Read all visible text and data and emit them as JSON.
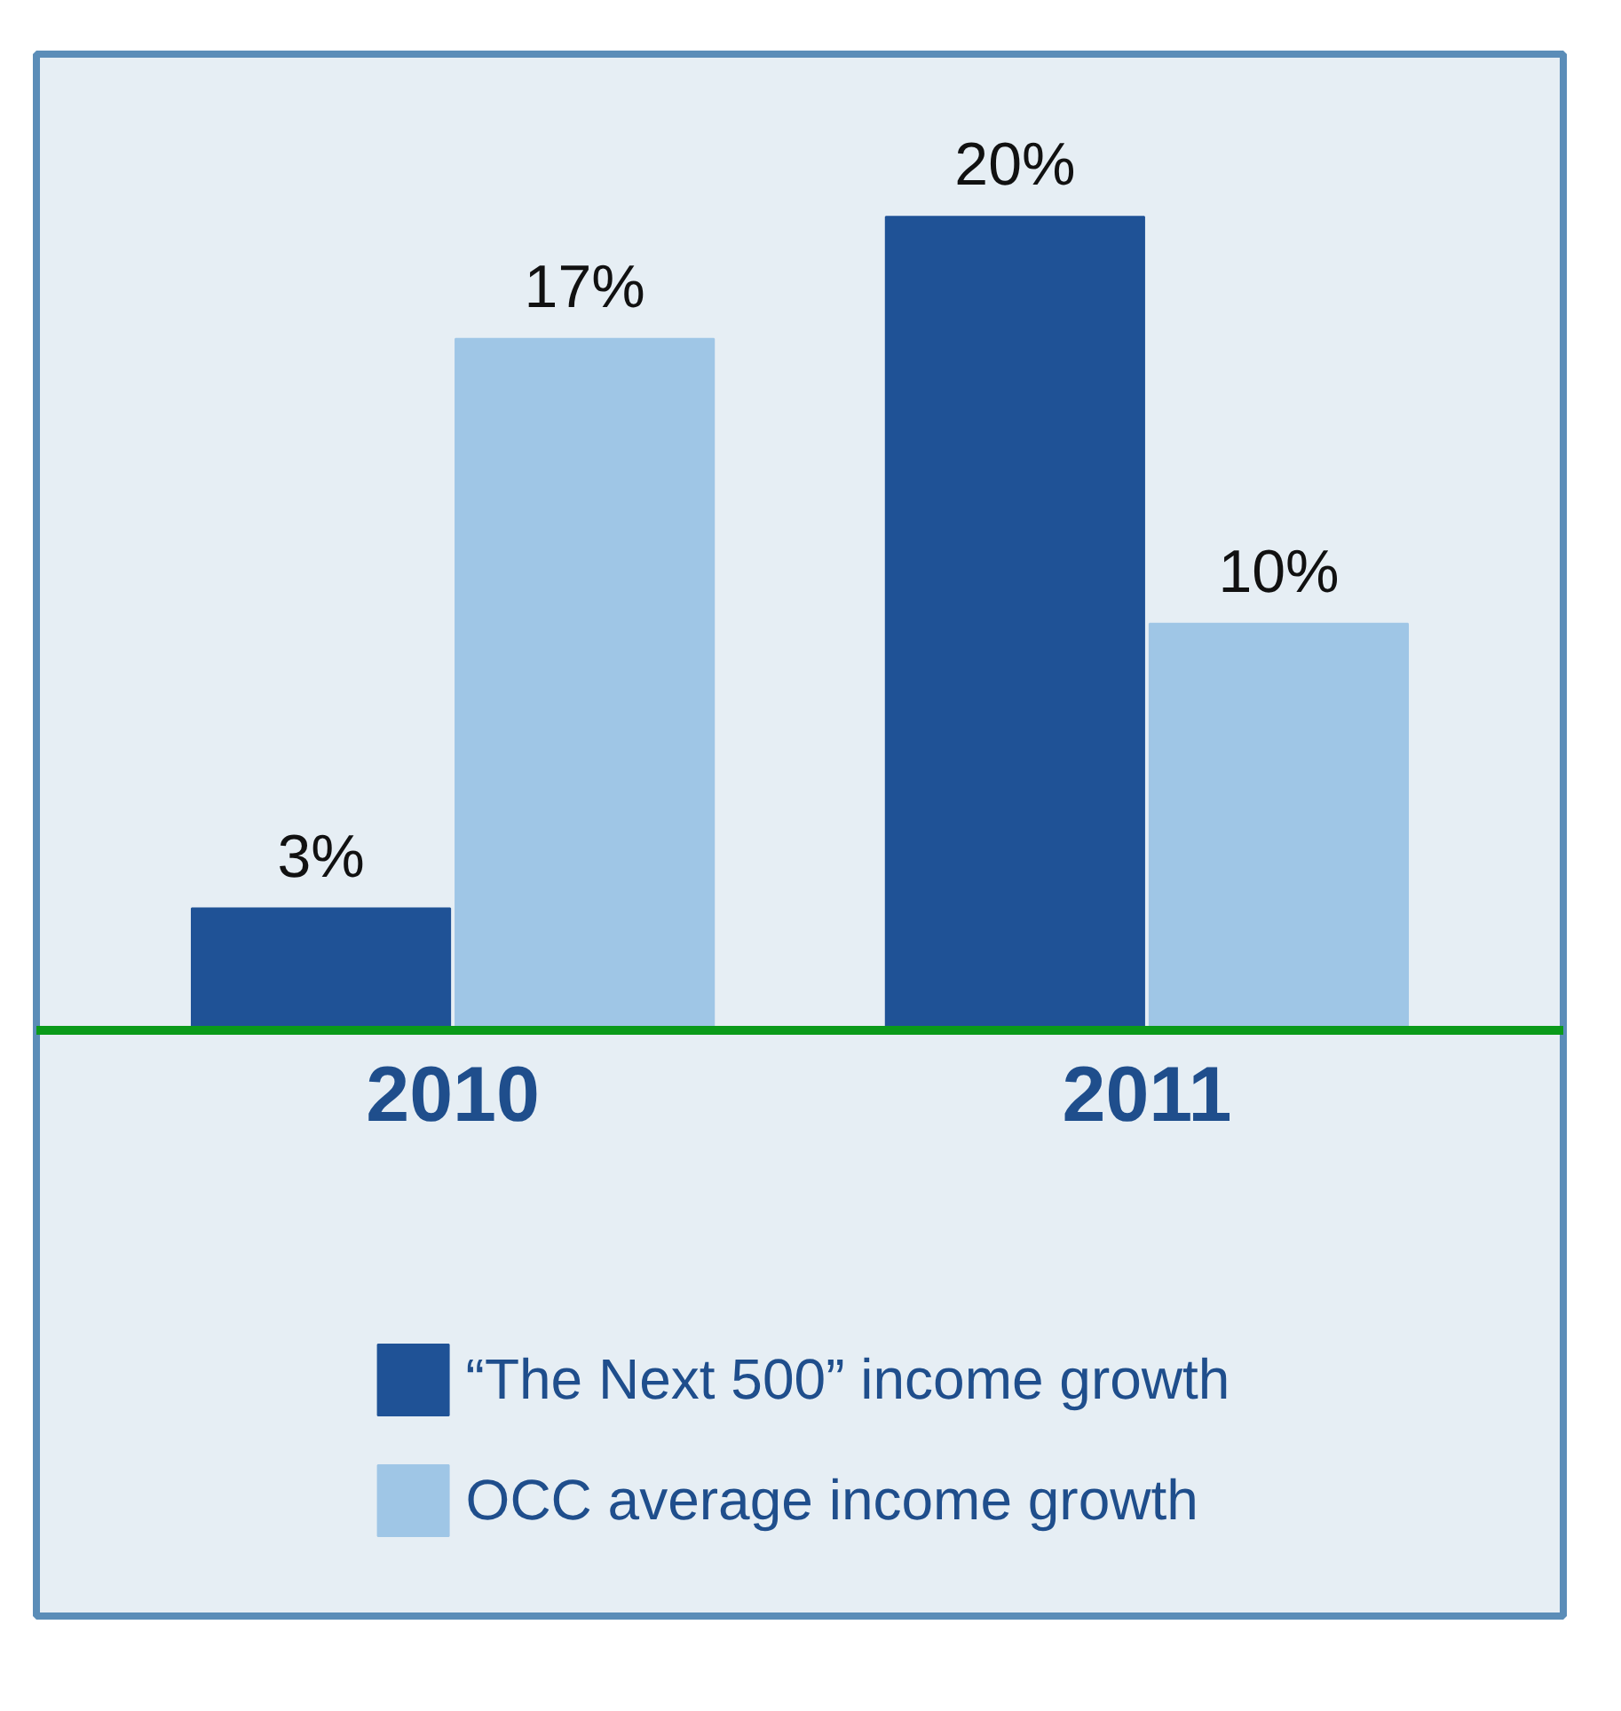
{
  "chart_data": {
    "type": "bar",
    "categories": [
      "2010",
      "2011"
    ],
    "series": [
      {
        "name": "“The Next 500” income growth",
        "color": "#1f5296",
        "values": [
          3,
          20
        ],
        "value_labels": [
          "3%",
          "20%"
        ]
      },
      {
        "name": "OCC average income growth",
        "color": "#9fc6e6",
        "values": [
          17,
          10
        ],
        "value_labels": [
          "17%",
          "10%"
        ]
      }
    ],
    "legend": "bottom"
  }
}
